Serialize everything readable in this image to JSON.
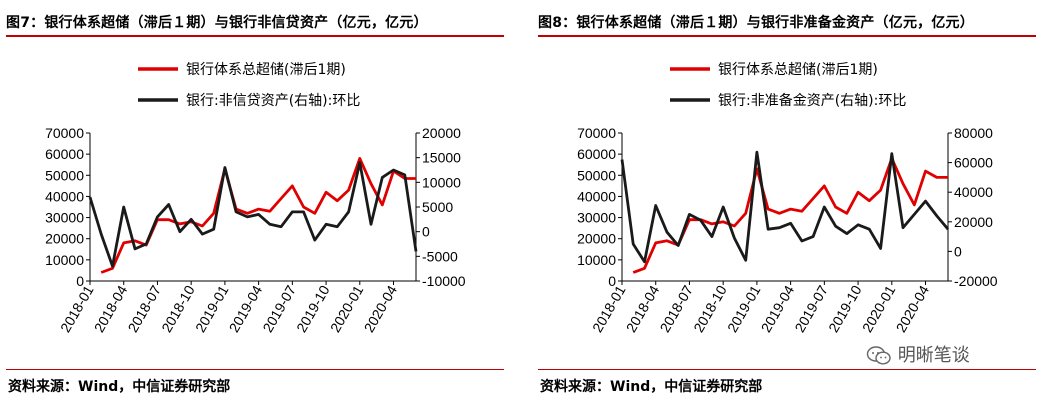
{
  "chart_data": [
    {
      "type": "line",
      "title": "图7：银行体系超储（滞后１期）与银行非信贷资产（亿元，亿元）",
      "source": "资料来源：Wind，中信证券研究部",
      "x": [
        "2018-01",
        "2018-02",
        "2018-03",
        "2018-04",
        "2018-05",
        "2018-06",
        "2018-07",
        "2018-08",
        "2018-09",
        "2018-10",
        "2018-11",
        "2018-12",
        "2019-01",
        "2019-02",
        "2019-03",
        "2019-04",
        "2019-05",
        "2019-06",
        "2019-07",
        "2019-08",
        "2019-09",
        "2019-10",
        "2019-11",
        "2019-12",
        "2020-01",
        "2020-02",
        "2020-03",
        "2020-04",
        "2020-05",
        "2020-06"
      ],
      "x_tick_labels": [
        "2018-01",
        "2018-04",
        "2018-07",
        "2018-10",
        "2019-01",
        "2019-04",
        "2019-07",
        "2019-10",
        "2020-01",
        "2020-04"
      ],
      "y_left": {
        "ylim": [
          0,
          70000
        ],
        "ticks": [
          0,
          10000,
          20000,
          30000,
          40000,
          50000,
          60000,
          70000
        ]
      },
      "y_right": {
        "ylim": [
          -10000,
          20000
        ],
        "ticks": [
          -10000,
          -5000,
          0,
          5000,
          10000,
          15000,
          20000
        ]
      },
      "series": [
        {
          "name": "银行体系总超储(滞后1期)",
          "axis": "left",
          "color": "#e00000",
          "values": [
            null,
            4000,
            6000,
            18000,
            19000,
            17000,
            29000,
            29000,
            27000,
            28000,
            26000,
            32000,
            53000,
            34000,
            32000,
            34000,
            33000,
            39000,
            45000,
            35000,
            32000,
            42000,
            38000,
            43000,
            58000,
            46000,
            36000,
            52000,
            48500,
            48500
          ]
        },
        {
          "name": "银行:非信贷资产(右轴):环比",
          "axis": "right",
          "color": "#1a1a1a",
          "values": [
            7000,
            -500,
            -7000,
            5000,
            -3500,
            -2500,
            3000,
            5500,
            0,
            2500,
            -500,
            500,
            13000,
            4000,
            3000,
            3500,
            1500,
            1000,
            4000,
            4000,
            -1700,
            1500,
            1000,
            4000,
            14000,
            1500,
            11000,
            12500,
            11500,
            -4000
          ]
        }
      ]
    },
    {
      "type": "line",
      "title": "图8：银行体系超储（滞后１期）与银行非准备金资产（亿元，亿元）",
      "source": "资料来源：Wind，中信证券研究部",
      "x": [
        "2018-01",
        "2018-02",
        "2018-03",
        "2018-04",
        "2018-05",
        "2018-06",
        "2018-07",
        "2018-08",
        "2018-09",
        "2018-10",
        "2018-11",
        "2018-12",
        "2019-01",
        "2019-02",
        "2019-03",
        "2019-04",
        "2019-05",
        "2019-06",
        "2019-07",
        "2019-08",
        "2019-09",
        "2019-10",
        "2019-11",
        "2019-12",
        "2020-01",
        "2020-02",
        "2020-03",
        "2020-04",
        "2020-05",
        "2020-06"
      ],
      "x_tick_labels": [
        "2018-01",
        "2018-04",
        "2018-07",
        "2018-10",
        "2019-01",
        "2019-04",
        "2019-07",
        "2019-10",
        "2020-01",
        "2020-04"
      ],
      "y_left": {
        "ylim": [
          0,
          70000
        ],
        "ticks": [
          0,
          10000,
          20000,
          30000,
          40000,
          50000,
          60000,
          70000
        ]
      },
      "y_right": {
        "ylim": [
          -20000,
          80000
        ],
        "ticks": [
          -20000,
          0,
          20000,
          40000,
          60000,
          80000
        ]
      },
      "series": [
        {
          "name": "银行体系总超储(滞后1期)",
          "axis": "left",
          "color": "#e00000",
          "values": [
            null,
            4000,
            6000,
            18000,
            19000,
            17000,
            29000,
            29000,
            27000,
            28000,
            26000,
            32000,
            53000,
            34000,
            32000,
            34000,
            33000,
            39000,
            45000,
            35000,
            32000,
            42000,
            38000,
            43000,
            58000,
            46000,
            36000,
            52000,
            49000,
            49000
          ]
        },
        {
          "name": "银行:非准备金资产(右轴):环比",
          "axis": "right",
          "color": "#1a1a1a",
          "values": [
            62000,
            5000,
            -7000,
            31000,
            13000,
            4000,
            25000,
            21000,
            10000,
            30000,
            9000,
            -6000,
            67000,
            15000,
            16000,
            19000,
            7000,
            10000,
            30000,
            17000,
            12000,
            18000,
            15000,
            2000,
            66000,
            16000,
            25000,
            34000,
            24000,
            15000
          ]
        }
      ]
    }
  ],
  "watermark": {
    "text": "明晰笔谈",
    "icon": "wechat-icon"
  }
}
